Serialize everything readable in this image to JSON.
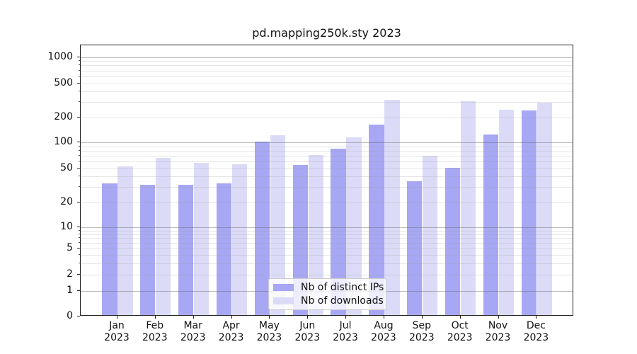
{
  "title": "pd.mapping250k.sty 2023",
  "legend": {
    "items": [
      {
        "label": "Nb of distinct IPs",
        "color": "#a7a7f3"
      },
      {
        "label": "Nb of downloads",
        "color": "#dbdbf8"
      }
    ]
  },
  "axes": {
    "y_tick_labels": [
      "1000",
      "500",
      "200",
      "100",
      "50",
      "20",
      "10",
      "5",
      "2",
      "1",
      "0"
    ],
    "x_tick_labels": [
      "Jan 2023",
      "Feb 2023",
      "Mar 2023",
      "Apr 2023",
      "May 2023",
      "Jun 2023",
      "Jul 2023",
      "Aug 2023",
      "Sep 2023",
      "Oct 2023",
      "Nov 2023",
      "Dec 2023"
    ]
  },
  "chart_data": {
    "type": "bar",
    "title": "pd.mapping250k.sty 2023",
    "categories": [
      "Jan 2023",
      "Feb 2023",
      "Mar 2023",
      "Apr 2023",
      "May 2023",
      "Jun 2023",
      "Jul 2023",
      "Aug 2023",
      "Sep 2023",
      "Oct 2023",
      "Nov 2023",
      "Dec 2023"
    ],
    "series": [
      {
        "name": "Nb of distinct IPs",
        "color": "#a7a7f3",
        "values": [
          33,
          32,
          32,
          33,
          102,
          55,
          85,
          163,
          35,
          51,
          125,
          242
        ]
      },
      {
        "name": "Nb of downloads",
        "color": "#dbdbf8",
        "values": [
          52,
          66,
          58,
          56,
          122,
          71,
          114,
          318,
          70,
          308,
          244,
          298
        ]
      }
    ],
    "xlabel": "",
    "ylabel": "",
    "yscale": "symlog",
    "yticks": [
      0,
      1,
      2,
      5,
      10,
      20,
      50,
      100,
      200,
      500,
      1000
    ],
    "minor_yticks": [
      3,
      4,
      6,
      7,
      8,
      9,
      30,
      40,
      60,
      70,
      80,
      90,
      300,
      400,
      600,
      700,
      800,
      900
    ],
    "ylim": [
      0,
      1400
    ],
    "grid": "both",
    "legend_position": "lower center",
    "grid_major_color": "#b0b0b0",
    "grid_minor_color": "#e4e4e4"
  }
}
